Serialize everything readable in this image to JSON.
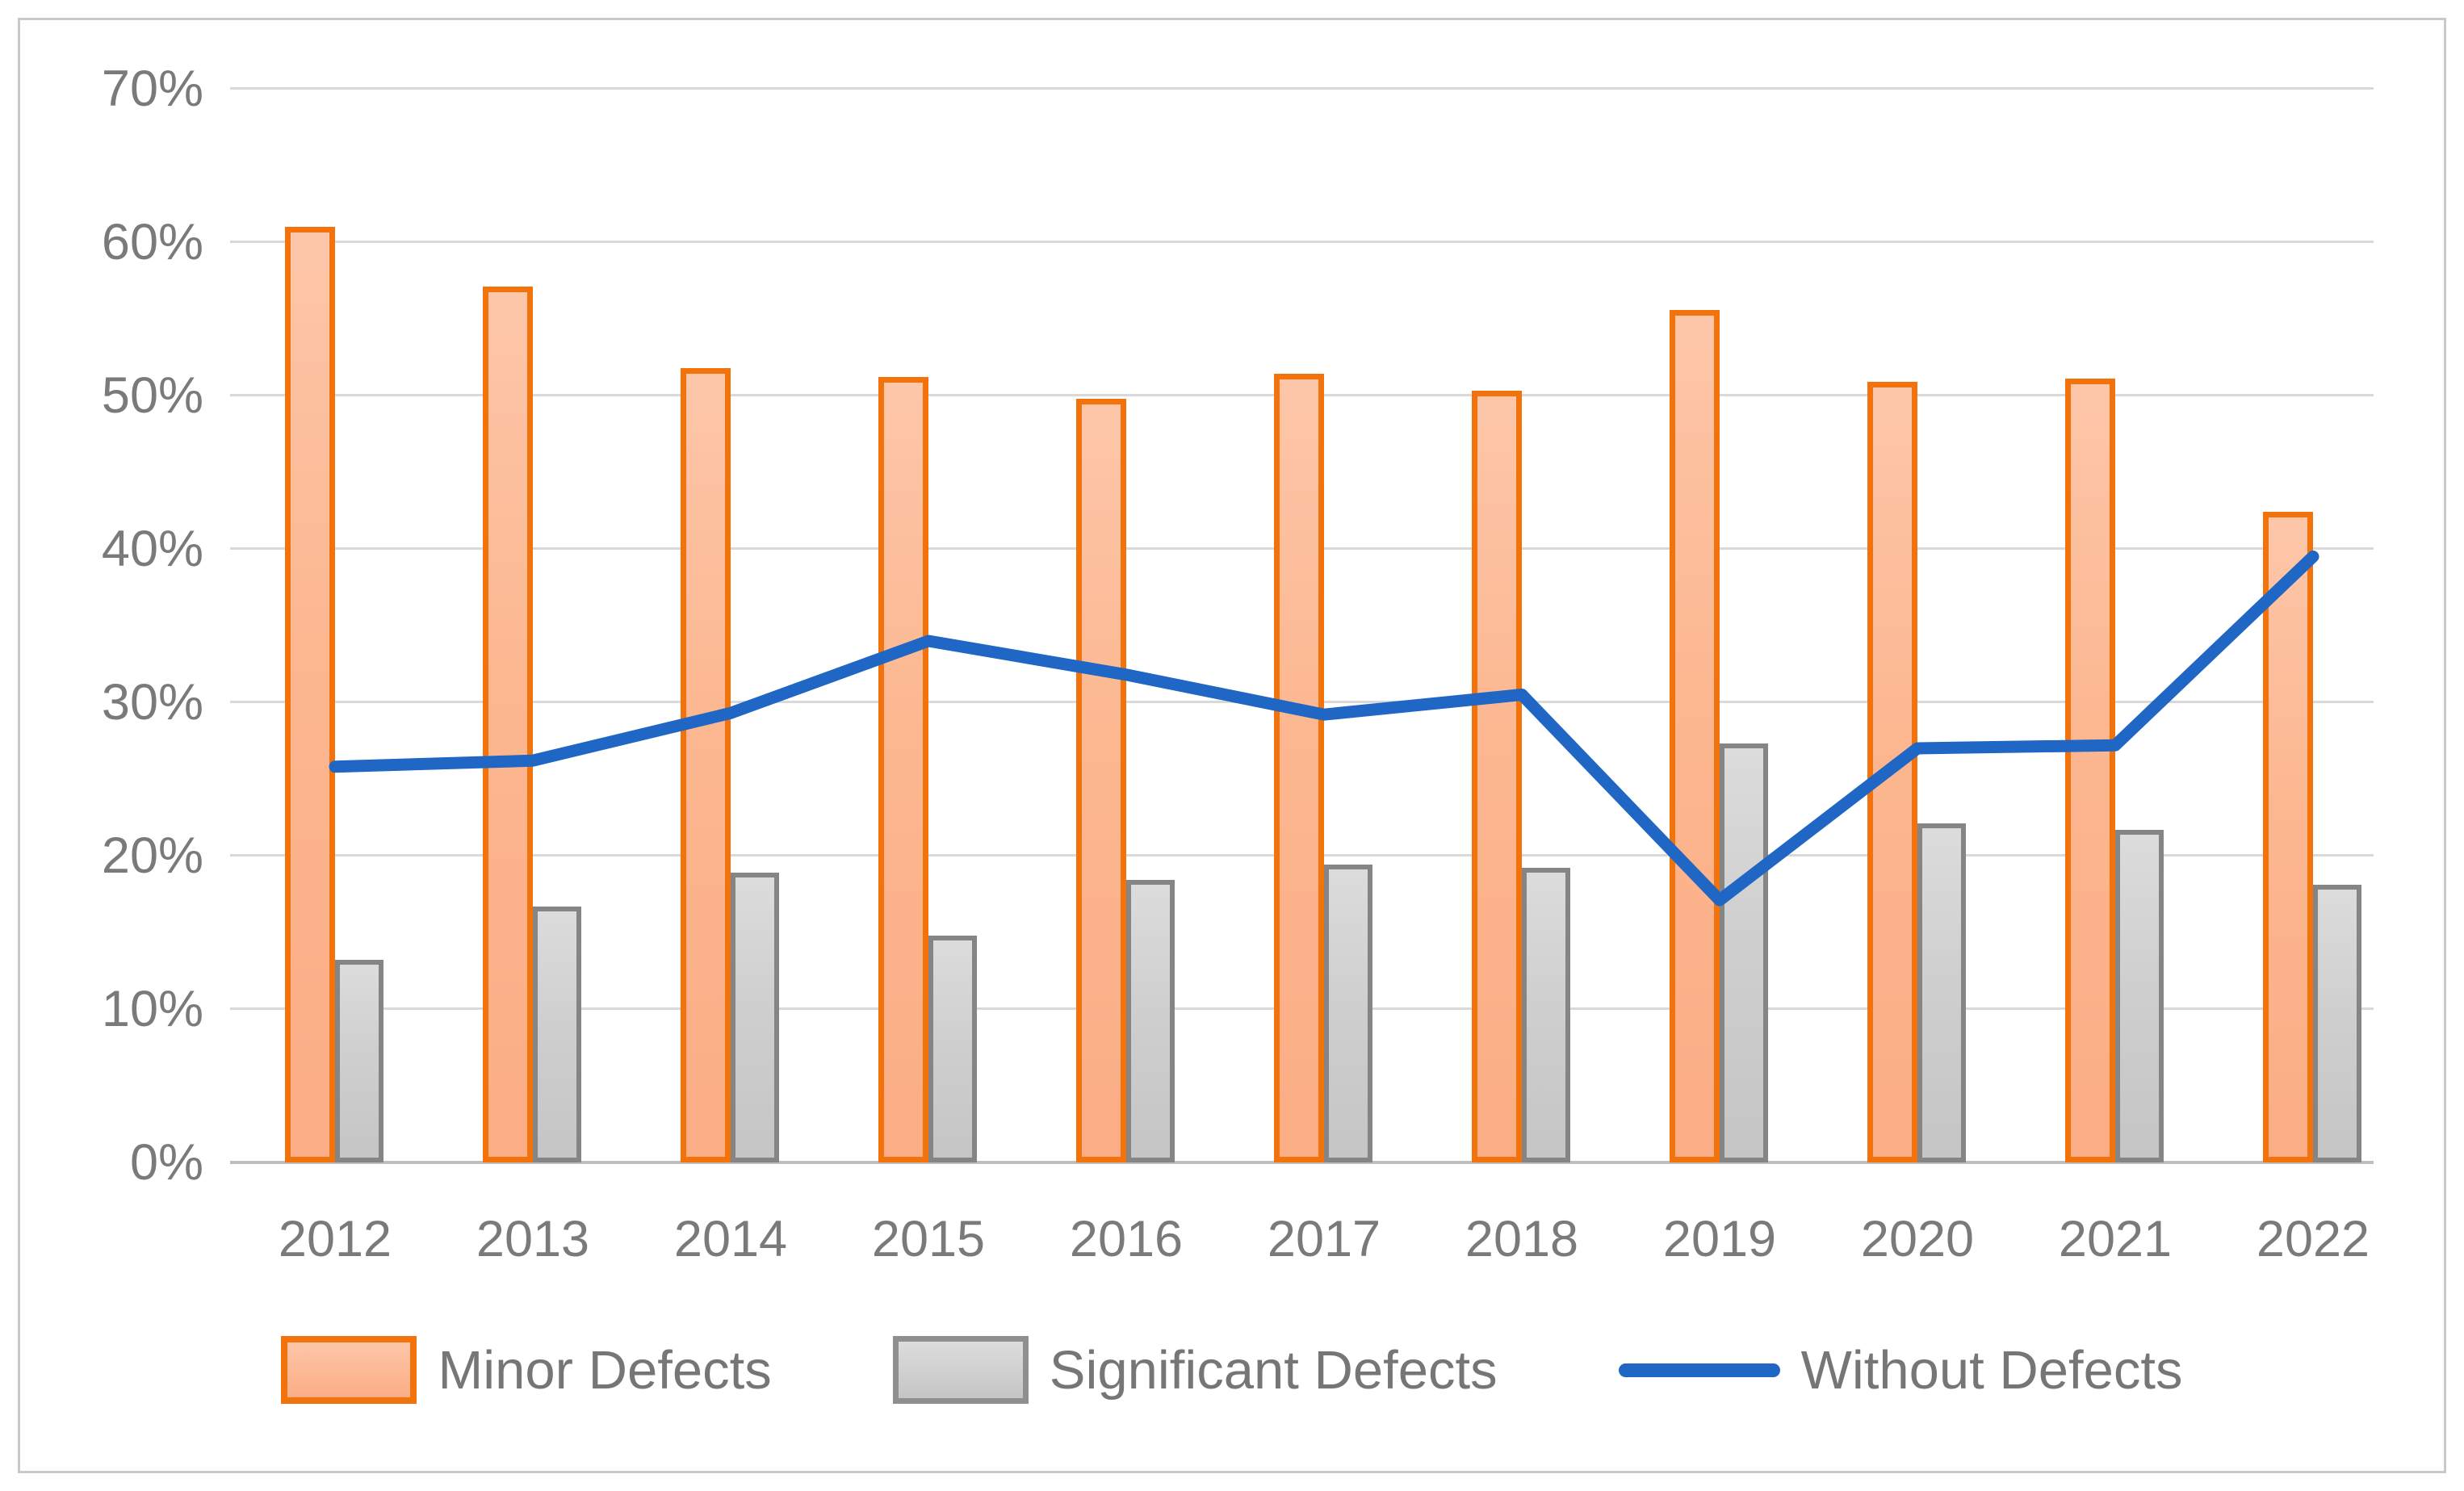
{
  "chart_data": {
    "type": "bar",
    "subtype": "grouped-bars-with-line-combo",
    "title": "",
    "xlabel": "",
    "ylabel": "",
    "categories": [
      "2012",
      "2013",
      "2014",
      "2015",
      "2016",
      "2017",
      "2018",
      "2019",
      "2020",
      "2021",
      "2022"
    ],
    "series": [
      {
        "name": "Minor Defects",
        "render_as": "bar",
        "fill_color": "#FBB38C",
        "border_color": "#F2720C",
        "values": [
          61.0,
          57.1,
          51.8,
          51.2,
          49.8,
          51.4,
          50.3,
          55.6,
          50.9,
          51.1,
          42.4
        ]
      },
      {
        "name": "Significant Defects",
        "render_as": "bar",
        "fill_color": "#CFCFCF",
        "border_color": "#858585",
        "values": [
          13.2,
          16.7,
          18.9,
          14.8,
          18.4,
          19.4,
          19.2,
          27.3,
          22.1,
          21.7,
          18.1
        ]
      },
      {
        "name": "Without Defects",
        "render_as": "line",
        "line_color": "#2066C5",
        "values": [
          25.8,
          26.2,
          29.3,
          34.0,
          31.8,
          29.2,
          30.5,
          17.1,
          27.0,
          27.2,
          39.5
        ]
      }
    ],
    "y_axis": {
      "min": 0,
      "max": 70,
      "step": 10,
      "tick_labels": [
        "0%",
        "10%",
        "20%",
        "30%",
        "40%",
        "50%",
        "60%",
        "70%"
      ]
    },
    "grid": true,
    "gridline_color": "#D9D9D9",
    "axis_line_color": "#BFBFBF",
    "tick_text_color": "#7A7A7A",
    "legend_position": "bottom",
    "legend_labels": [
      "Minor Defects",
      "Significant Defects",
      "Without Defects"
    ]
  }
}
